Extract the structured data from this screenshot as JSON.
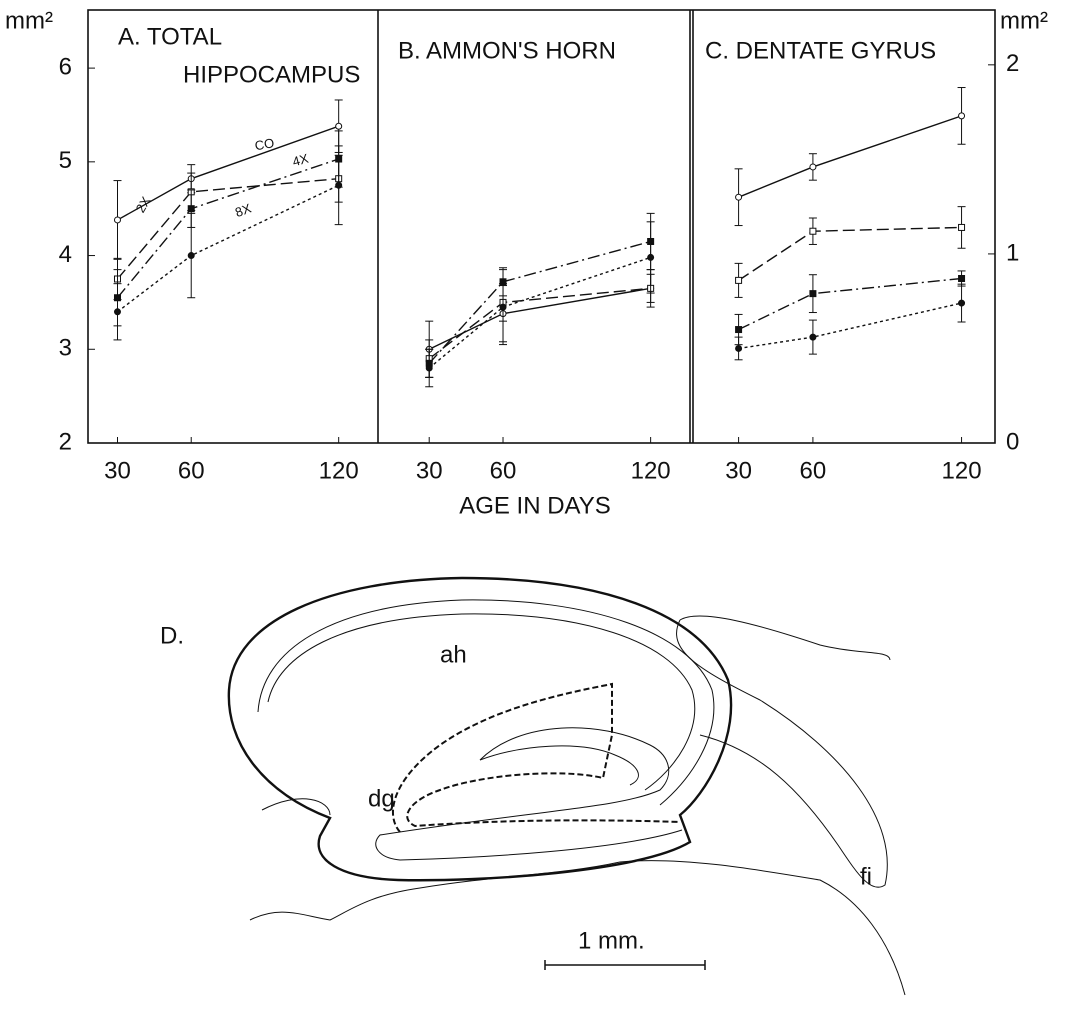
{
  "chart_data": [
    {
      "type": "line",
      "title": [
        "A. TOTAL",
        "HIPPOCAMPUS"
      ],
      "ylabel": "mm²",
      "color": "#111111",
      "x": [
        30,
        60,
        120
      ],
      "xlim": [
        18,
        136
      ],
      "xticks": [
        30,
        60,
        120
      ],
      "ylim": [
        2,
        6.62
      ],
      "yticks": [
        2,
        3,
        4,
        5,
        6
      ],
      "series": [
        {
          "name": "CO",
          "dash": "solid",
          "marker": "circle-open",
          "values": [
            4.38,
            4.82,
            5.38
          ],
          "errors": [
            0.42,
            0.15,
            0.28
          ]
        },
        {
          "name": "2X",
          "dash": "dashed",
          "marker": "square-open",
          "values": [
            3.75,
            4.68,
            4.82
          ],
          "errors": [
            0.22,
            0.2,
            0.25
          ]
        },
        {
          "name": "4X",
          "dash": "dashdot",
          "marker": "square-filled",
          "values": [
            3.55,
            4.5,
            5.03
          ],
          "errors": [
            0.3,
            0.2,
            0.3
          ]
        },
        {
          "name": "8X",
          "dash": "dotted",
          "marker": "circle-filled",
          "values": [
            3.4,
            4.0,
            4.75
          ],
          "errors": [
            0.3,
            0.45,
            0.42
          ]
        }
      ]
    },
    {
      "type": "line",
      "title": [
        "B. AMMON'S HORN"
      ],
      "xlabel": "AGE IN DAYS",
      "color": "#111111",
      "x": [
        30,
        60,
        120
      ],
      "xlim": [
        10,
        136
      ],
      "xticks": [
        30,
        60,
        120
      ],
      "ylim": [
        2,
        6.62
      ],
      "series": [
        {
          "dash": "solid",
          "marker": "circle-open",
          "values": [
            3.0,
            3.38,
            3.65
          ],
          "errors": [
            0.3,
            0.3,
            0.15
          ]
        },
        {
          "dash": "dashed",
          "marker": "square-open",
          "values": [
            2.9,
            3.5,
            3.65
          ],
          "errors": [
            0.2,
            0.2,
            0.2
          ]
        },
        {
          "dash": "dashdot",
          "marker": "square-filled",
          "values": [
            2.85,
            3.72,
            4.15
          ],
          "errors": [
            0.15,
            0.15,
            0.3
          ]
        },
        {
          "dash": "dotted",
          "marker": "circle-filled",
          "values": [
            2.8,
            3.45,
            3.98
          ],
          "errors": [
            0.2,
            0.4,
            0.38
          ]
        }
      ]
    },
    {
      "type": "line",
      "title": [
        "C. DENTATE GYRUS"
      ],
      "y2label": "mm²",
      "color": "#111111",
      "x": [
        30,
        60,
        120
      ],
      "xlim": [
        11.6,
        133.5
      ],
      "xticks": [
        30,
        60,
        120
      ],
      "y2lim": [
        0,
        2.29
      ],
      "y2ticks": [
        0,
        1,
        2
      ],
      "series": [
        {
          "axis": "y2",
          "dash": "solid",
          "marker": "circle-open",
          "values": [
            1.3,
            1.46,
            1.73
          ],
          "errors": [
            0.15,
            0.07,
            0.15
          ]
        },
        {
          "axis": "y2",
          "dash": "dashed",
          "marker": "square-open",
          "values": [
            0.86,
            1.12,
            1.14
          ],
          "errors": [
            0.09,
            0.07,
            0.11
          ]
        },
        {
          "axis": "y2",
          "dash": "dashdot",
          "marker": "square-filled",
          "values": [
            0.6,
            0.79,
            0.87
          ],
          "errors": [
            0.08,
            0.1,
            0.04
          ]
        },
        {
          "axis": "y2",
          "dash": "dotted",
          "marker": "circle-filled",
          "values": [
            0.5,
            0.56,
            0.74
          ],
          "errors": [
            0.06,
            0.09,
            0.1
          ]
        }
      ]
    }
  ],
  "diagram": {
    "label": "D.",
    "regions": [
      "ah",
      "dg",
      "fi"
    ],
    "scale_bar": "1 mm."
  }
}
